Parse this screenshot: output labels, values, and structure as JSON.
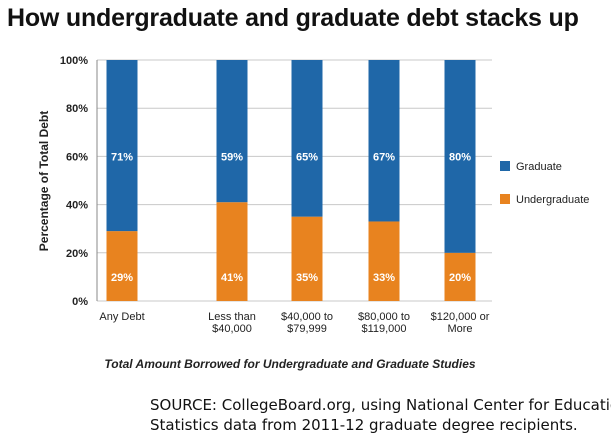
{
  "title": "How undergraduate and graduate debt stacks up",
  "source": {
    "line1": "SOURCE: CollegeBoard.org, using  National Center for Education",
    "line2": "Statistics data from 2011-12 graduate degree recipients."
  },
  "chart_data": {
    "type": "bar",
    "stacked": true,
    "ylabel": "Percentage of Total Debt",
    "xlabel": "Total Amount Borrowed for Undergraduate and Graduate Studies",
    "ylim": [
      0,
      100
    ],
    "yticks": [
      0,
      20,
      40,
      60,
      80,
      100
    ],
    "ytick_labels": [
      "0%",
      "20%",
      "40%",
      "60%",
      "80%",
      "100%"
    ],
    "categories": [
      [
        "Any Debt"
      ],
      [
        "Less than",
        "$40,000"
      ],
      [
        "$40,000 to",
        "$79,999"
      ],
      [
        "$80,000 to",
        "$119,000"
      ],
      [
        "$120,000 or",
        "More"
      ]
    ],
    "series": [
      {
        "name": "Undergraduate",
        "color": "#e8831f",
        "values": [
          29,
          41,
          35,
          33,
          20
        ],
        "labels": [
          "29%",
          "41%",
          "35%",
          "33%",
          "20%"
        ]
      },
      {
        "name": "Graduate",
        "color": "#1f67a8",
        "values": [
          71,
          59,
          65,
          67,
          80
        ],
        "labels": [
          "71%",
          "59%",
          "65%",
          "67%",
          "80%"
        ]
      }
    ],
    "legend": [
      {
        "name": "Graduate",
        "color": "#1f67a8"
      },
      {
        "name": "Undergraduate",
        "color": "#e8831f"
      }
    ],
    "legend_position": "right",
    "grid": true
  }
}
